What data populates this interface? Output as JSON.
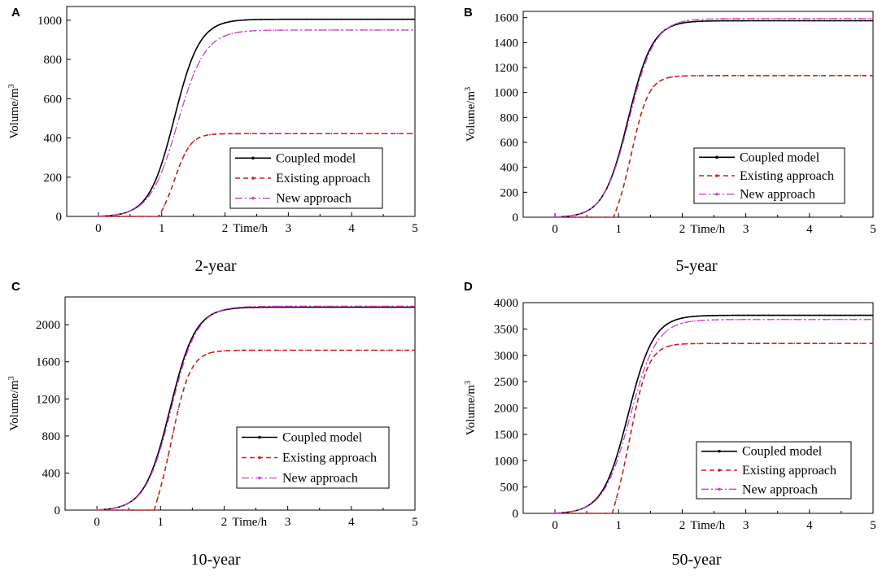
{
  "colors": {
    "coupled": "#000000",
    "existing": "#cc1f1f",
    "new": "#cc44cc"
  },
  "legend_labels": [
    "Coupled model",
    "Existing approach",
    "New approach"
  ],
  "chart_data": [
    {
      "type": "line",
      "panel": "A",
      "caption": "2-year",
      "xlabel": "Time/h",
      "ylabel": "Volume/m",
      "ylabel_sup": "3",
      "xlim": [
        -0.5,
        5
      ],
      "ylim": [
        0,
        1070
      ],
      "xticks": [
        0,
        1,
        2,
        3,
        4,
        5
      ],
      "yticks": [
        0,
        200,
        400,
        600,
        800,
        1000
      ],
      "legend_position": "bottom-right",
      "series": [
        {
          "name": "Coupled model",
          "final": 1005,
          "t50": 1.2,
          "k": 5.0,
          "lag": 0
        },
        {
          "name": "Existing approach",
          "final": 422,
          "t50": 1.22,
          "k": 8.0,
          "lag": 0.95
        },
        {
          "name": "New approach",
          "final": 950,
          "t50": 1.25,
          "k": 4.6,
          "lag": 0
        }
      ]
    },
    {
      "type": "line",
      "panel": "B",
      "caption": "5-year",
      "xlabel": "Time/h",
      "ylabel": "Volume/m",
      "ylabel_sup": "3",
      "xlim": [
        -0.5,
        5
      ],
      "ylim": [
        0,
        1650
      ],
      "xticks": [
        0,
        1,
        2,
        3,
        4,
        5
      ],
      "yticks": [
        0,
        200,
        400,
        600,
        800,
        1000,
        1200,
        1400,
        1600
      ],
      "legend_position": "bottom-right",
      "series": [
        {
          "name": "Coupled model",
          "final": 1575,
          "t50": 1.15,
          "k": 5.2,
          "lag": 0
        },
        {
          "name": "Existing approach",
          "final": 1135,
          "t50": 1.22,
          "k": 7.5,
          "lag": 0.92
        },
        {
          "name": "New approach",
          "final": 1592,
          "t50": 1.17,
          "k": 5.0,
          "lag": 0
        }
      ]
    },
    {
      "type": "line",
      "panel": "C",
      "caption": "10-year",
      "xlabel": "Time/h",
      "ylabel": "Volume/m",
      "ylabel_sup": "3",
      "xlim": [
        -0.5,
        5
      ],
      "ylim": [
        0,
        2300
      ],
      "xticks": [
        0,
        1,
        2,
        3,
        4,
        5
      ],
      "yticks": [
        0,
        400,
        800,
        1200,
        1600,
        2000
      ],
      "legend_position": "bottom-right",
      "series": [
        {
          "name": "Coupled model",
          "final": 2190,
          "t50": 1.15,
          "k": 5.0,
          "lag": 0
        },
        {
          "name": "Existing approach",
          "final": 1725,
          "t50": 1.2,
          "k": 7.0,
          "lag": 0.9
        },
        {
          "name": "New approach",
          "final": 2200,
          "t50": 1.17,
          "k": 4.9,
          "lag": 0
        }
      ]
    },
    {
      "type": "line",
      "panel": "D",
      "caption": "50-year",
      "xlabel": "Time/h",
      "ylabel": "Volume/m",
      "ylabel_sup": "3",
      "xlim": [
        -0.5,
        5
      ],
      "ylim": [
        0,
        4000
      ],
      "xticks": [
        0,
        1,
        2,
        3,
        4,
        5
      ],
      "yticks": [
        0,
        500,
        1000,
        1500,
        2000,
        2500,
        3000,
        3500,
        4000
      ],
      "legend_position": "bottom-right",
      "series": [
        {
          "name": "Coupled model",
          "final": 3760,
          "t50": 1.15,
          "k": 5.0,
          "lag": 0
        },
        {
          "name": "Existing approach",
          "final": 3225,
          "t50": 1.2,
          "k": 7.0,
          "lag": 0.9
        },
        {
          "name": "New approach",
          "final": 3680,
          "t50": 1.18,
          "k": 4.8,
          "lag": 0
        }
      ]
    }
  ]
}
